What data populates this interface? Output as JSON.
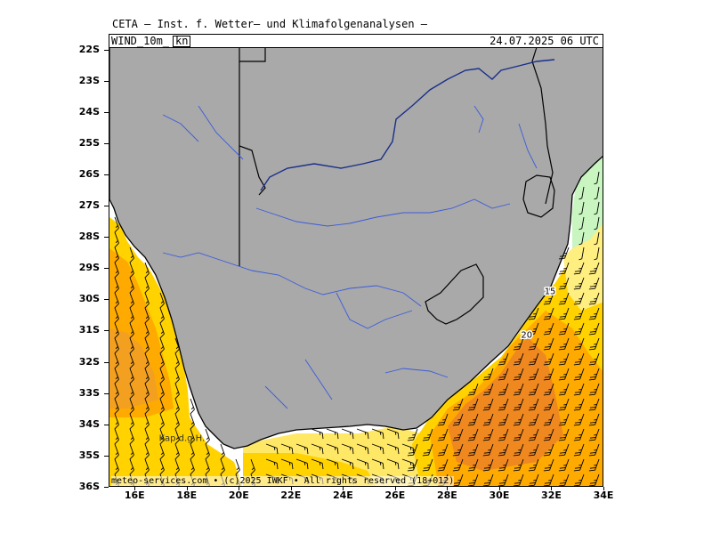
{
  "header": {
    "credit": "CETA – Inst. f. Wetter– und Klimafolgenanalysen –",
    "variable": "WIND_10m_",
    "unit": "kn",
    "valid_time": "24.07.2025 06 UTC"
  },
  "footer": {
    "copyright": "meteo-services.com • (c)2025 IWKF • All rights reserved (18+012)"
  },
  "place_labels": [
    {
      "text": "Kap d.g.H.",
      "lon": 16.9,
      "lat": -34.5
    }
  ],
  "contour_labels": [
    {
      "text": "15",
      "lon": 31.7,
      "lat": -29.8
    },
    {
      "text": "20",
      "lon": 30.8,
      "lat": -31.2
    }
  ],
  "map": {
    "projection": "equirectangular",
    "lon_range": [
      15,
      34
    ],
    "lat_range": [
      -36,
      -21.5
    ],
    "lat_ticks": [
      "22S",
      "23S",
      "24S",
      "25S",
      "26S",
      "27S",
      "28S",
      "29S",
      "30S",
      "31S",
      "32S",
      "33S",
      "34S",
      "35S",
      "36S"
    ],
    "lat_values": [
      -22,
      -23,
      -24,
      -25,
      -26,
      -27,
      -28,
      -29,
      -30,
      -31,
      -32,
      -33,
      -34,
      -35,
      -36
    ],
    "lon_ticks": [
      "16E",
      "18E",
      "20E",
      "22E",
      "24E",
      "26E",
      "28E",
      "30E",
      "32E",
      "34E"
    ],
    "lon_values": [
      16,
      18,
      20,
      22,
      24,
      26,
      28,
      30,
      32,
      34
    ],
    "land_color": "#a9a9a9",
    "border_color": "#000000",
    "river_color": "#3b5bdb",
    "country_line_color": "#000000",
    "wind_speed_legend_colors": {
      "light_green": "#c8f5c0",
      "pale_yellow": "#ffee80",
      "yellow": "#ffd200",
      "orange": "#ffaa00",
      "dark_orange": "#f08820"
    },
    "wind_field": {
      "west_coast": "10-15 kn, southerly to south-easterly, stronger (15-20 kn) offshore",
      "south_coast": "10-15 kn westerly",
      "east_coast": "20-25 kn south-westerly, strongest south-east of Durban"
    }
  }
}
